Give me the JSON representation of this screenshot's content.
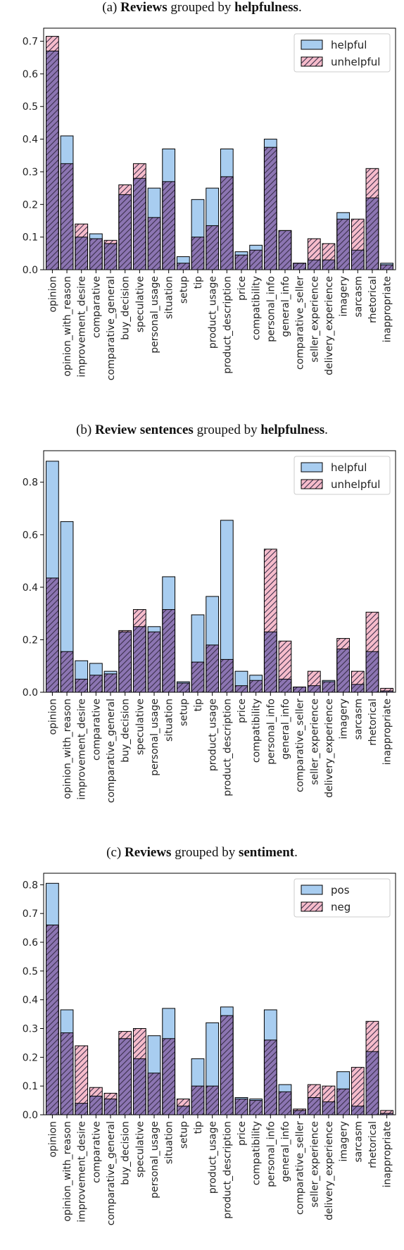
{
  "colors": {
    "helpful": "#a8cdf0",
    "unhelpful": "#f6bccb",
    "overlap": "#8c75b2",
    "hatch": "#3a2f4a"
  },
  "chart_data": [
    {
      "type": "bar",
      "caption": {
        "prefix": "(a) ",
        "b1": "Reviews",
        "mid": " grouped by ",
        "b2": "helpfulness",
        "suffix": "."
      },
      "categories": [
        "opinion",
        "opinion_with_reason",
        "improvement_desire",
        "comparative",
        "comparative_general",
        "buy_decision",
        "speculative",
        "personal_usage",
        "situation",
        "setup",
        "tip",
        "product_usage",
        "product_description",
        "price",
        "compatibility",
        "personal_info",
        "general_info",
        "comparative_seller",
        "seller_experience",
        "delivery_experience",
        "imagery",
        "sarcasm",
        "rhetorical",
        "inappropriate"
      ],
      "series": [
        {
          "name": "helpful",
          "values": [
            0.67,
            0.41,
            0.1,
            0.11,
            0.08,
            0.23,
            0.28,
            0.25,
            0.37,
            0.04,
            0.215,
            0.25,
            0.37,
            0.055,
            0.075,
            0.4,
            0.12,
            0.02,
            0.03,
            0.03,
            0.175,
            0.06,
            0.22,
            0.02
          ]
        },
        {
          "name": "unhelpful",
          "values": [
            0.715,
            0.325,
            0.14,
            0.095,
            0.09,
            0.26,
            0.325,
            0.16,
            0.27,
            0.02,
            0.1,
            0.135,
            0.285,
            0.045,
            0.06,
            0.375,
            0.12,
            0.02,
            0.095,
            0.08,
            0.155,
            0.155,
            0.31,
            0.015
          ]
        }
      ],
      "yticks": [
        "0.0",
        "0.1",
        "0.2",
        "0.3",
        "0.4",
        "0.5",
        "0.6",
        "0.7"
      ],
      "ylim": [
        0,
        0.74
      ],
      "legend": "top-right"
    },
    {
      "type": "bar",
      "caption": {
        "prefix": "(b) ",
        "b1": "Review sentences",
        "mid": " grouped by ",
        "b2": "helpfulness",
        "suffix": "."
      },
      "categories": [
        "opinion",
        "opinion_with_reason",
        "improvement_desire",
        "comparative",
        "comparative_general",
        "buy_decision",
        "speculative",
        "personal_usage",
        "situation",
        "setup",
        "tip",
        "product_usage",
        "product_description",
        "price",
        "compatibility",
        "personal_info",
        "general_info",
        "comparative_seller",
        "seller_experience",
        "delivery_experience",
        "imagery",
        "sarcasm",
        "rhetorical",
        "inappropriate"
      ],
      "series": [
        {
          "name": "helpful",
          "values": [
            0.88,
            0.65,
            0.12,
            0.11,
            0.08,
            0.23,
            0.25,
            0.25,
            0.44,
            0.04,
            0.295,
            0.365,
            0.655,
            0.08,
            0.065,
            0.23,
            0.05,
            0.02,
            0.025,
            0.045,
            0.165,
            0.03,
            0.155,
            0.005
          ]
        },
        {
          "name": "unhelpful",
          "values": [
            0.435,
            0.155,
            0.05,
            0.065,
            0.07,
            0.235,
            0.315,
            0.23,
            0.315,
            0.035,
            0.115,
            0.18,
            0.125,
            0.025,
            0.045,
            0.545,
            0.195,
            0.02,
            0.08,
            0.04,
            0.205,
            0.08,
            0.305,
            0.015
          ]
        }
      ],
      "yticks": [
        "0.0",
        "0.2",
        "0.4",
        "0.6",
        "0.8"
      ],
      "ylim": [
        0,
        0.92
      ],
      "legend": "top-right"
    },
    {
      "type": "bar",
      "caption": {
        "prefix": "(c) ",
        "b1": "Reviews",
        "mid": " grouped by ",
        "b2": "sentiment",
        "suffix": "."
      },
      "categories": [
        "opinion",
        "opinion_with_reason",
        "improvement_desire",
        "comparative",
        "comparative_general",
        "buy_decision",
        "speculative",
        "personal_usage",
        "situation",
        "setup",
        "tip",
        "product_usage",
        "product_description",
        "price",
        "compatibility",
        "personal_info",
        "general_info",
        "comparative_seller",
        "seller_experience",
        "delivery_experience",
        "imagery",
        "sarcasm",
        "rhetorical",
        "inappropriate"
      ],
      "series": [
        {
          "name": "pos",
          "values": [
            0.805,
            0.365,
            0.04,
            0.065,
            0.055,
            0.265,
            0.195,
            0.275,
            0.37,
            0.03,
            0.195,
            0.32,
            0.375,
            0.06,
            0.055,
            0.365,
            0.105,
            0.015,
            0.06,
            0.045,
            0.15,
            0.03,
            0.22,
            0.005
          ]
        },
        {
          "name": "neg",
          "values": [
            0.66,
            0.285,
            0.24,
            0.095,
            0.075,
            0.29,
            0.3,
            0.145,
            0.265,
            0.055,
            0.1,
            0.1,
            0.345,
            0.055,
            0.05,
            0.26,
            0.08,
            0.02,
            0.105,
            0.1,
            0.09,
            0.165,
            0.325,
            0.015
          ]
        }
      ],
      "yticks": [
        "0.0",
        "0.1",
        "0.2",
        "0.3",
        "0.4",
        "0.5",
        "0.6",
        "0.7",
        "0.8"
      ],
      "ylim": [
        0,
        0.84
      ],
      "legend": "top-right"
    }
  ]
}
